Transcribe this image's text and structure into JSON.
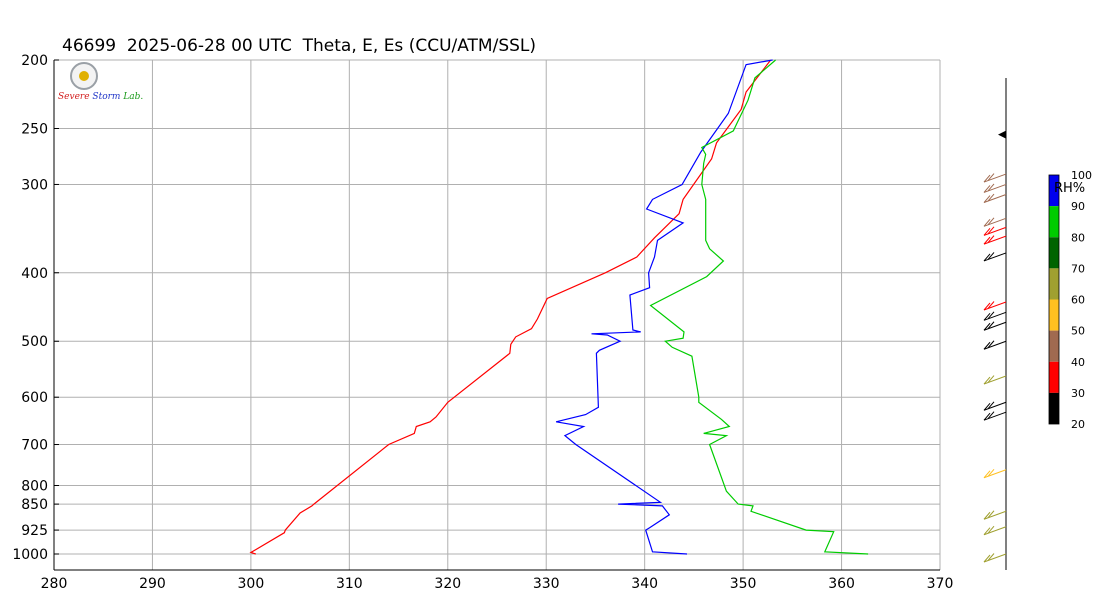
{
  "title": "46699  2025-06-28 00 UTC  Theta, E, Es (CCU/ATM/SSL)",
  "logo": {
    "text_a": "Severe",
    "text_b": "Storm",
    "text_c": "Lab."
  },
  "colors": {
    "theta": "#ff0000",
    "e": "#0000ff",
    "es": "#00cc00",
    "grid": "#b0b0b0",
    "axis": "#000000"
  },
  "chart_data": {
    "type": "line",
    "title": "46699  2025-06-28 00 UTC  Theta, E, Es (CCU/ATM/SSL)",
    "xlabel": "",
    "ylabel": "",
    "xlim": [
      280,
      370
    ],
    "ylim": [
      1000,
      200
    ],
    "y_scale": "log",
    "grid": true,
    "x_ticks": [
      280,
      290,
      300,
      310,
      320,
      330,
      340,
      350,
      360,
      370
    ],
    "y_ticks": [
      200,
      250,
      300,
      400,
      500,
      600,
      700,
      800,
      850,
      925,
      1000
    ],
    "series": [
      {
        "color": "red",
        "points": [
          [
            300.5,
            1000
          ],
          [
            300.0,
            995
          ],
          [
            303.4,
            933
          ],
          [
            303.5,
            925
          ],
          [
            305.0,
            875
          ],
          [
            306.2,
            855
          ],
          [
            306.4,
            850
          ],
          [
            314.0,
            700
          ],
          [
            316.6,
            675
          ],
          [
            316.8,
            660
          ],
          [
            318.2,
            650
          ],
          [
            318.8,
            640
          ],
          [
            320.0,
            610
          ],
          [
            326.3,
            520
          ],
          [
            326.4,
            505
          ],
          [
            326.9,
            493
          ],
          [
            328.5,
            480
          ],
          [
            329.1,
            465
          ],
          [
            330.1,
            435
          ],
          [
            336.0,
            400
          ],
          [
            339.2,
            380
          ],
          [
            341.0,
            357
          ],
          [
            343.5,
            330
          ],
          [
            343.9,
            315
          ],
          [
            346.8,
            276
          ],
          [
            347.3,
            262
          ],
          [
            349.8,
            235
          ],
          [
            350.3,
            222
          ],
          [
            352.8,
            200
          ]
        ]
      },
      {
        "color": "blue",
        "points": [
          [
            344.3,
            1000
          ],
          [
            340.8,
            993
          ],
          [
            340.1,
            925
          ],
          [
            340.5,
            918
          ],
          [
            342.5,
            880
          ],
          [
            341.8,
            855
          ],
          [
            337.3,
            850
          ],
          [
            341.6,
            845
          ],
          [
            333.0,
            700
          ],
          [
            331.9,
            680
          ],
          [
            333.8,
            660
          ],
          [
            331.0,
            650
          ],
          [
            334.0,
            635
          ],
          [
            335.3,
            620
          ],
          [
            335.1,
            520
          ],
          [
            335.4,
            515
          ],
          [
            337.5,
            500
          ],
          [
            336.2,
            490
          ],
          [
            334.6,
            488
          ],
          [
            339.6,
            485
          ],
          [
            338.8,
            482
          ],
          [
            338.5,
            430
          ],
          [
            340.5,
            420
          ],
          [
            340.4,
            400
          ],
          [
            341.0,
            380
          ],
          [
            341.3,
            360
          ],
          [
            343.9,
            340
          ],
          [
            340.2,
            325
          ],
          [
            340.8,
            315
          ],
          [
            343.8,
            300
          ],
          [
            345.7,
            270
          ],
          [
            348.5,
            238
          ],
          [
            350.3,
            203
          ],
          [
            353.0,
            200
          ]
        ]
      },
      {
        "color": "green",
        "points": [
          [
            362.7,
            1000
          ],
          [
            358.3,
            993
          ],
          [
            359.2,
            930
          ],
          [
            356.4,
            925
          ],
          [
            350.8,
            870
          ],
          [
            351.0,
            855
          ],
          [
            349.5,
            850
          ],
          [
            348.3,
            815
          ],
          [
            346.6,
            700
          ],
          [
            348.3,
            680
          ],
          [
            346.0,
            675
          ],
          [
            348.6,
            660
          ],
          [
            347.8,
            645
          ],
          [
            345.5,
            610
          ],
          [
            345.5,
            600
          ],
          [
            344.8,
            525
          ],
          [
            342.8,
            510
          ],
          [
            342.1,
            500
          ],
          [
            343.9,
            495
          ],
          [
            344.0,
            485
          ],
          [
            340.6,
            445
          ],
          [
            346.3,
            405
          ],
          [
            348.0,
            385
          ],
          [
            346.6,
            370
          ],
          [
            346.2,
            360
          ],
          [
            346.2,
            315
          ],
          [
            345.8,
            300
          ],
          [
            346.0,
            280
          ],
          [
            346.2,
            272
          ],
          [
            345.8,
            266
          ],
          [
            349.0,
            252
          ],
          [
            350.5,
            228
          ],
          [
            351.2,
            212
          ],
          [
            353.3,
            200
          ]
        ]
      }
    ],
    "legend": {
      "label": "RH%",
      "ticks": [
        100,
        90,
        80,
        70,
        60,
        50,
        40,
        30,
        20
      ],
      "bands": [
        {
          "from": 90,
          "to": 100,
          "color": "#0000ee"
        },
        {
          "from": 80,
          "to": 90,
          "color": "#00cc00"
        },
        {
          "from": 70,
          "to": 80,
          "color": "#006400"
        },
        {
          "from": 60,
          "to": 70,
          "color": "#a0a030"
        },
        {
          "from": 50,
          "to": 60,
          "color": "#ffc020"
        },
        {
          "from": 40,
          "to": 50,
          "color": "#a06a50"
        },
        {
          "from": 30,
          "to": 40,
          "color": "#ff0000"
        },
        {
          "from": 20,
          "to": 30,
          "color": "#000000"
        }
      ]
    },
    "wind_barbs": [
      {
        "p": 255,
        "color": "#000000",
        "flag": true
      },
      {
        "p": 290,
        "color": "#a06a50"
      },
      {
        "p": 300,
        "color": "#a06a50"
      },
      {
        "p": 310,
        "color": "#a06a50"
      },
      {
        "p": 335,
        "color": "#a06a50"
      },
      {
        "p": 345,
        "color": "#ff0000"
      },
      {
        "p": 355,
        "color": "#ff0000"
      },
      {
        "p": 375,
        "color": "#000000"
      },
      {
        "p": 440,
        "color": "#ff0000"
      },
      {
        "p": 455,
        "color": "#000000"
      },
      {
        "p": 470,
        "color": "#000000"
      },
      {
        "p": 500,
        "color": "#000000"
      },
      {
        "p": 560,
        "color": "#a0a030"
      },
      {
        "p": 610,
        "color": "#000000"
      },
      {
        "p": 630,
        "color": "#000000"
      },
      {
        "p": 760,
        "color": "#ffc020"
      },
      {
        "p": 870,
        "color": "#a0a030"
      },
      {
        "p": 915,
        "color": "#a0a030"
      },
      {
        "p": 1000,
        "color": "#a0a030"
      }
    ]
  }
}
